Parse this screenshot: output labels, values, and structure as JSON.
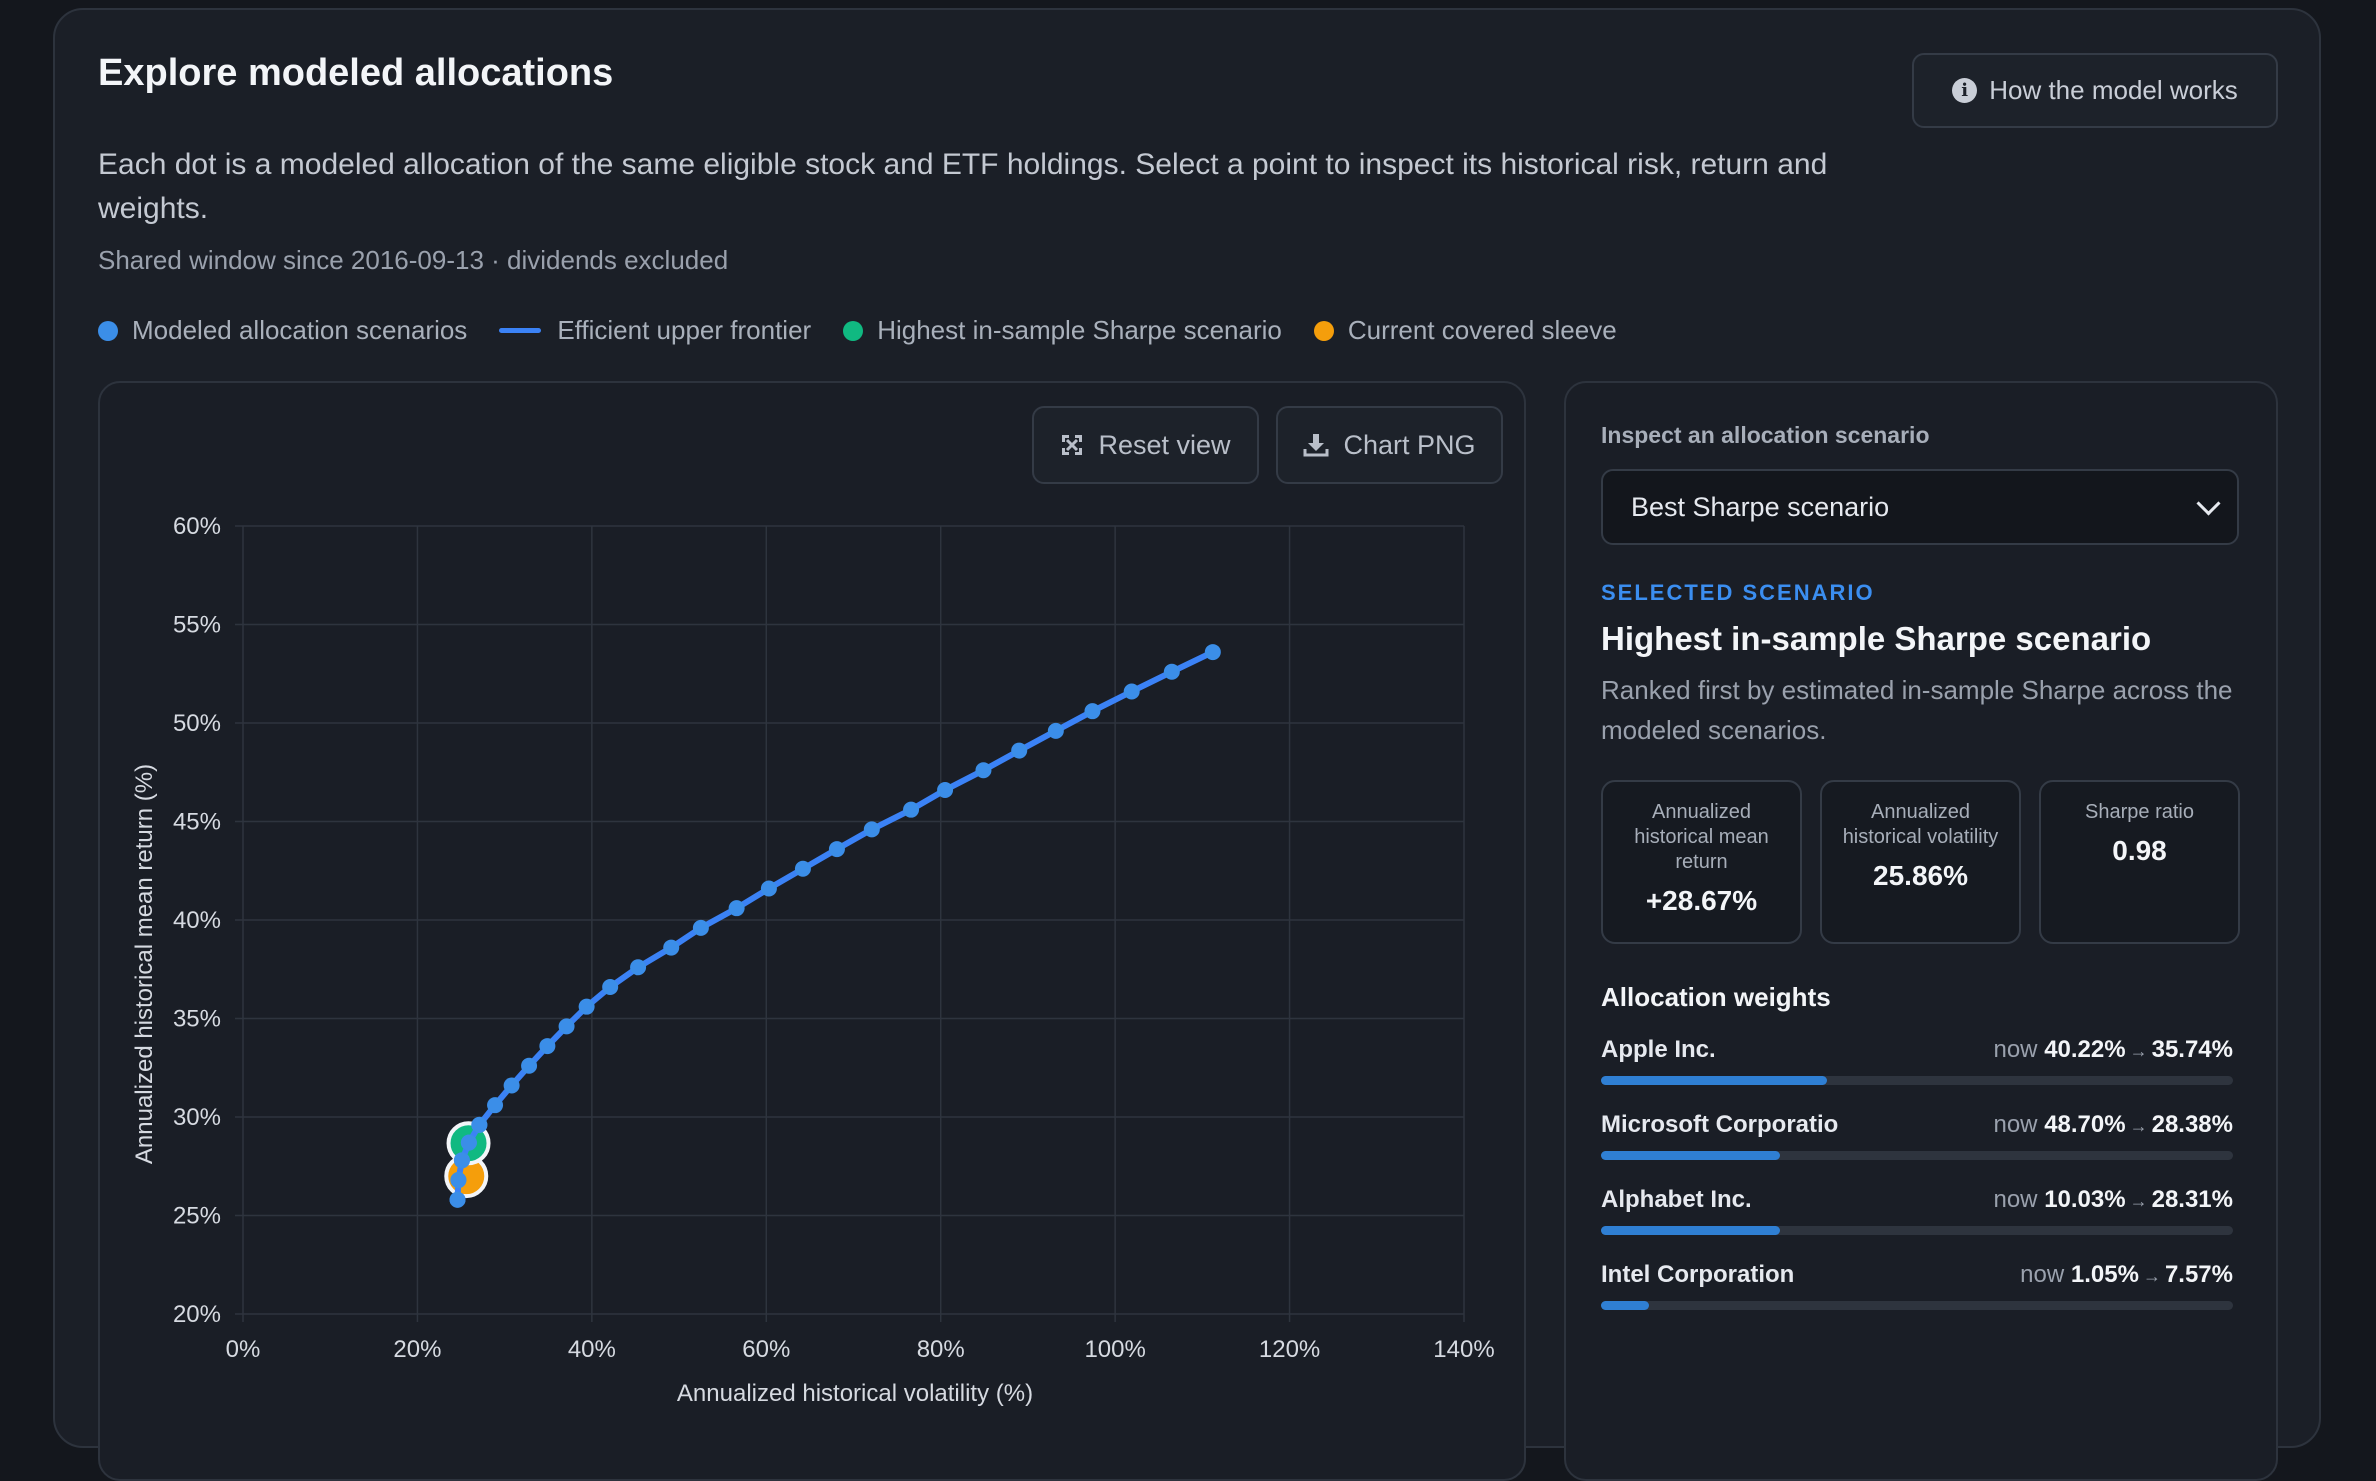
{
  "header": {
    "title": "Explore modeled allocations",
    "info_button": "How the model works",
    "description": "Each dot is a modeled allocation of the same eligible stock and ETF holdings. Select a point to inspect its historical risk, return and weights.",
    "window_note": "Shared window since 2016-09-13 · dividends excluded"
  },
  "legend": [
    {
      "label": "Modeled allocation scenarios",
      "color": "#3b8ee8",
      "shape": "dot"
    },
    {
      "label": "Efficient upper frontier",
      "color": "#3b82f6",
      "shape": "line"
    },
    {
      "label": "Highest in-sample Sharpe scenario",
      "color": "#10b981",
      "shape": "dot"
    },
    {
      "label": "Current covered sleeve",
      "color": "#f59e0b",
      "shape": "dot"
    }
  ],
  "toolbar": {
    "reset_label": "Reset view",
    "png_label": "Chart PNG"
  },
  "chart_data": {
    "type": "scatter",
    "xlabel": "Annualized historical volatility (%)",
    "ylabel": "Annualized historical mean return (%)",
    "xlim": [
      0,
      140
    ],
    "ylim": [
      20,
      60
    ],
    "x_ticks": [
      "0%",
      "20%",
      "40%",
      "60%",
      "80%",
      "100%",
      "120%",
      "140%"
    ],
    "y_ticks": [
      "20%",
      "25%",
      "30%",
      "35%",
      "40%",
      "45%",
      "50%",
      "55%",
      "60%"
    ],
    "grid": true,
    "series": [
      {
        "name": "Efficient upper frontier",
        "type": "line",
        "points": [
          [
            24.6,
            25.8
          ],
          [
            24.7,
            26.8
          ],
          [
            25.1,
            27.8
          ],
          [
            25.9,
            28.7
          ],
          [
            27.1,
            29.6
          ],
          [
            28.9,
            30.6
          ],
          [
            30.8,
            31.6
          ],
          [
            32.8,
            32.6
          ],
          [
            34.9,
            33.6
          ],
          [
            37.1,
            34.6
          ],
          [
            39.4,
            35.6
          ],
          [
            42.1,
            36.6
          ],
          [
            45.3,
            37.6
          ],
          [
            49.1,
            38.6
          ],
          [
            52.5,
            39.6
          ],
          [
            56.6,
            40.6
          ],
          [
            60.3,
            41.6
          ],
          [
            64.2,
            42.6
          ],
          [
            68.1,
            43.6
          ],
          [
            72.1,
            44.6
          ],
          [
            76.6,
            45.6
          ],
          [
            80.5,
            46.6
          ],
          [
            84.9,
            47.6
          ],
          [
            89.0,
            48.6
          ],
          [
            93.2,
            49.6
          ],
          [
            97.4,
            50.6
          ],
          [
            101.9,
            51.6
          ],
          [
            106.5,
            52.6
          ],
          [
            111.2,
            53.6
          ]
        ]
      },
      {
        "name": "Modeled allocation scenarios",
        "type": "scatter",
        "points": [
          [
            24.6,
            25.8
          ],
          [
            24.7,
            26.8
          ],
          [
            25.1,
            27.8
          ],
          [
            25.9,
            28.7
          ],
          [
            27.1,
            29.6
          ]
        ]
      },
      {
        "name": "Highest in-sample Sharpe scenario",
        "type": "scatter",
        "points": [
          [
            25.86,
            28.67
          ]
        ]
      },
      {
        "name": "Current covered sleeve",
        "type": "scatter",
        "points": [
          [
            25.6,
            27.0
          ]
        ]
      }
    ]
  },
  "inspector": {
    "label": "Inspect an allocation scenario",
    "selected_option": "Best Sharpe scenario",
    "kicker": "SELECTED SCENARIO",
    "name": "Highest in-sample Sharpe scenario",
    "description": "Ranked first by estimated in-sample Sharpe across the modeled scenarios.",
    "stats": [
      {
        "label": "Annualized historical mean return",
        "value": "+28.67%"
      },
      {
        "label": "Annualized historical volatility",
        "value": "25.86%"
      },
      {
        "label": "Sharpe ratio",
        "value": "0.98"
      }
    ],
    "weights_title": "Allocation weights",
    "weights": [
      {
        "name": "Apple Inc.",
        "now_label": "now",
        "now": "40.22%",
        "target": "35.74%",
        "fraction": 0.3574
      },
      {
        "name": "Microsoft Corporatio",
        "now_label": "now",
        "now": "48.70%",
        "target": "28.38%",
        "fraction": 0.2838
      },
      {
        "name": "Alphabet Inc.",
        "now_label": "now",
        "now": "10.03%",
        "target": "28.31%",
        "fraction": 0.2831
      },
      {
        "name": "Intel Corporation",
        "now_label": "now",
        "now": "1.05%",
        "target": "7.57%",
        "fraction": 0.0757
      }
    ]
  }
}
